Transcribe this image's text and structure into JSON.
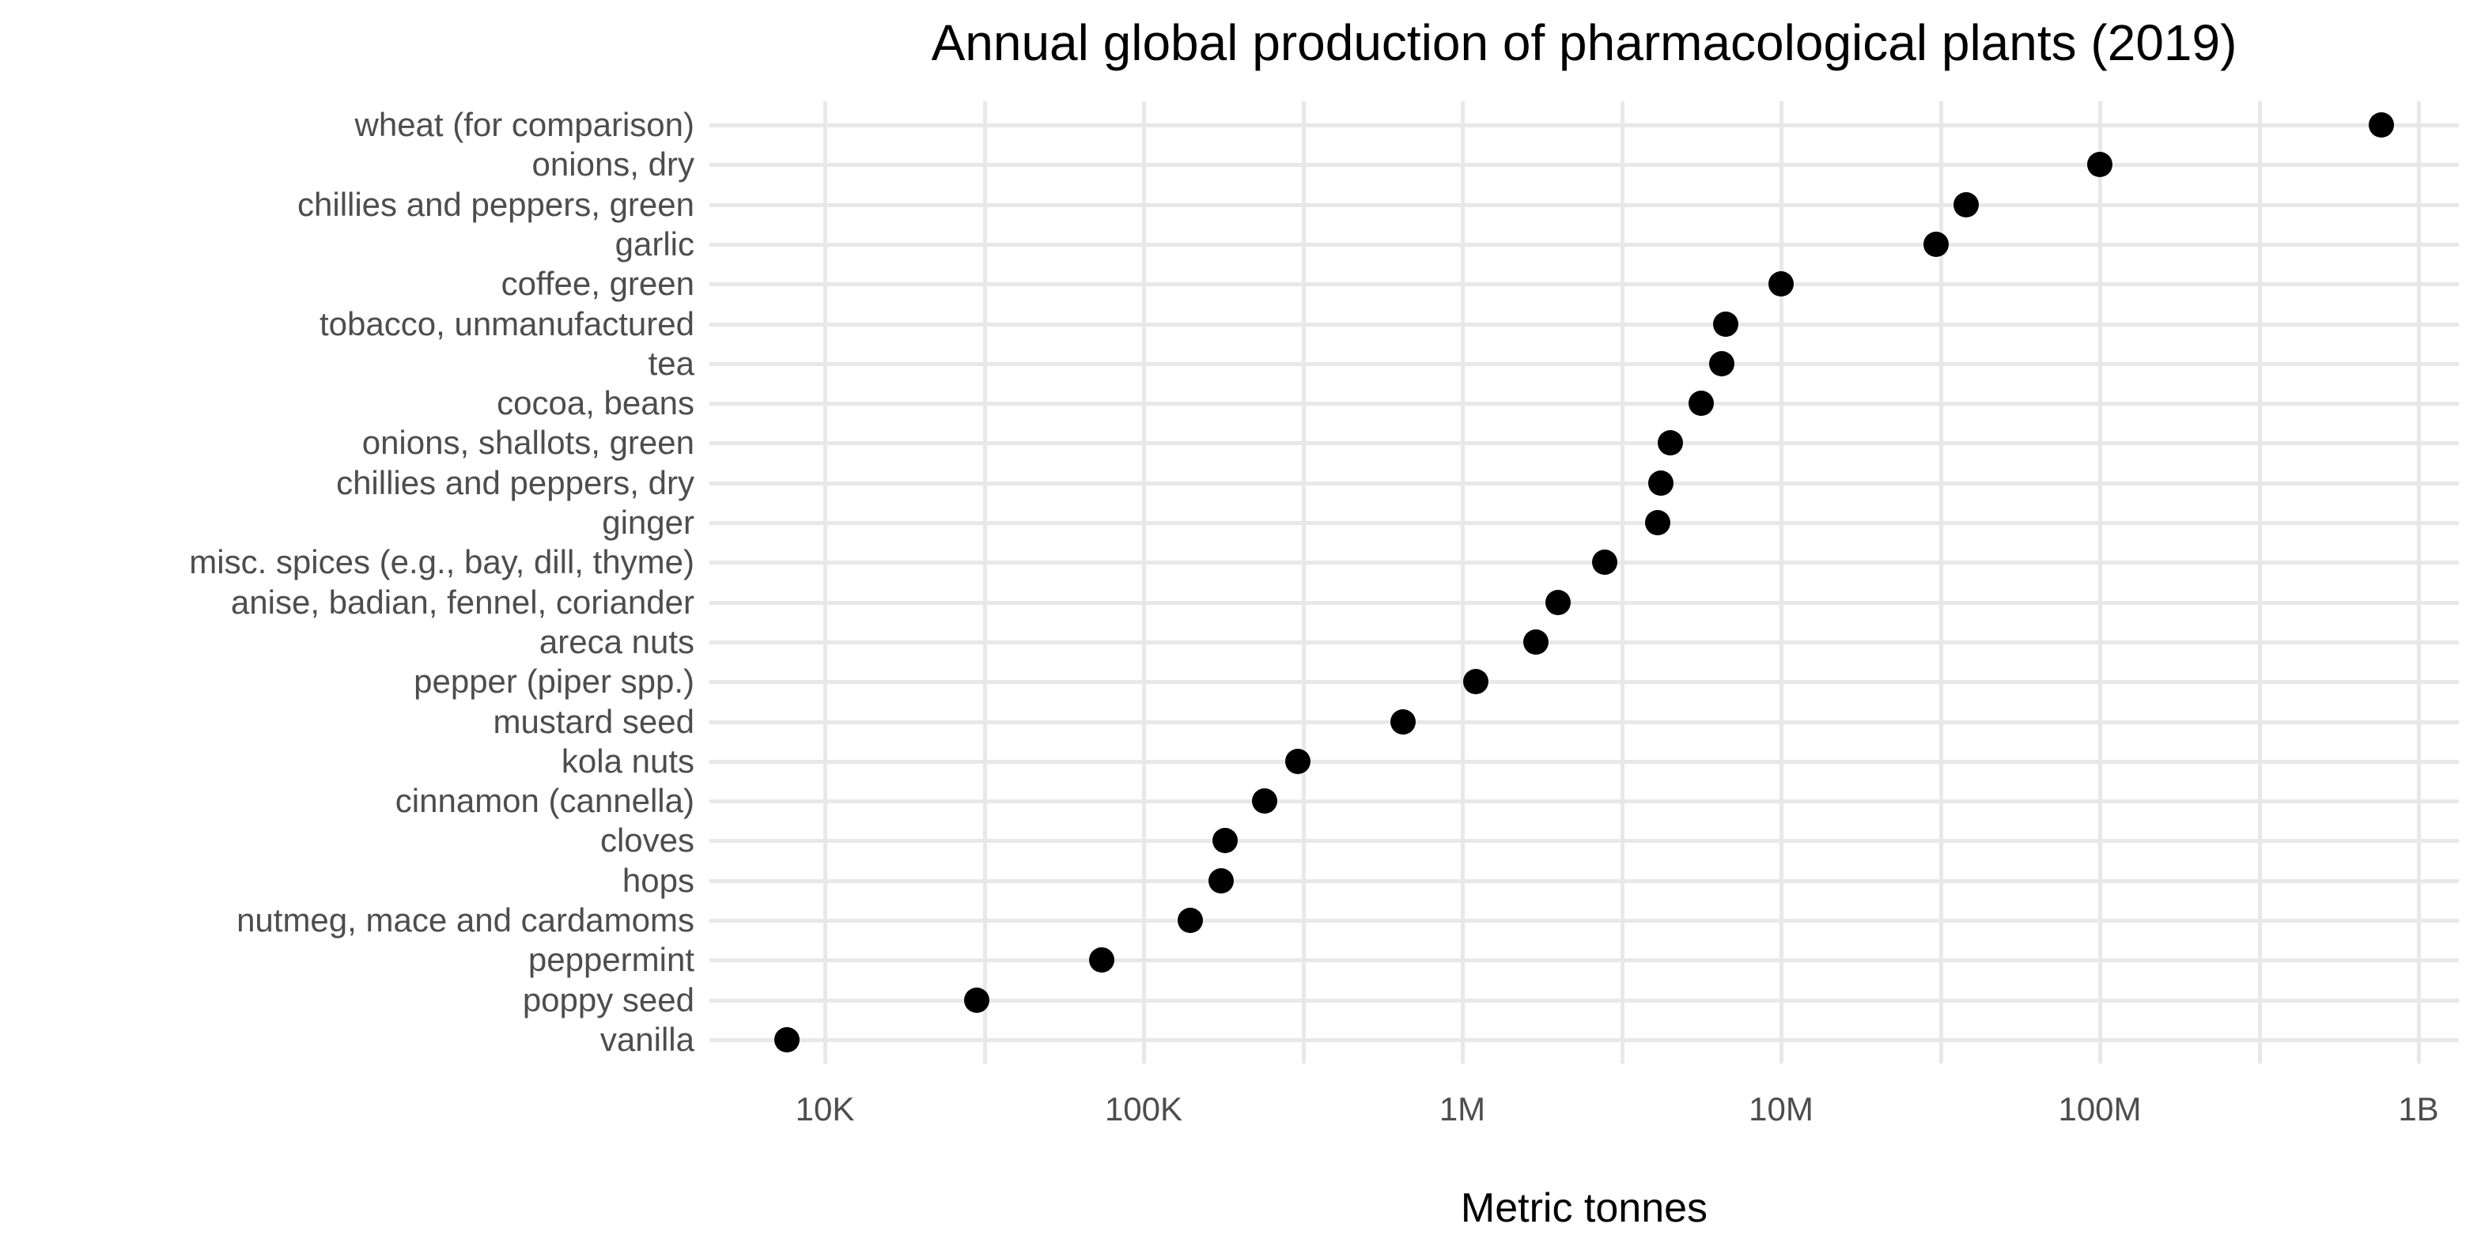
{
  "chart": {
    "title": "Annual global production of pharmacological plants (2019)",
    "x_axis_title": "Metric tonnes"
  },
  "chart_data": {
    "type": "scatter",
    "variant": "horizontal-dot-plot",
    "title": "Annual global production of pharmacological plants (2019)",
    "xlabel": "Metric tonnes",
    "ylabel": "",
    "x_scale": "log10",
    "xlim": [
      4300,
      1340000000
    ],
    "grid": "light gray: vertical major+minor log gridlines, one horizontal gridline per category",
    "legend": "none",
    "x_ticks": [
      {
        "label": "10K",
        "value": 10000
      },
      {
        "label": "100K",
        "value": 100000
      },
      {
        "label": "1M",
        "value": 1000000
      },
      {
        "label": "10M",
        "value": 10000000
      },
      {
        "label": "100M",
        "value": 100000000
      },
      {
        "label": "1B",
        "value": 1000000000
      }
    ],
    "categories": [
      "wheat (for comparison)",
      "onions, dry",
      "chillies and peppers, green",
      "garlic",
      "coffee, green",
      "tobacco, unmanufactured",
      "tea",
      "cocoa, beans",
      "onions, shallots, green",
      "chillies and peppers, dry",
      "ginger",
      "misc. spices (e.g., bay, dill, thyme)",
      "anise, badian, fennel, coriander",
      "areca nuts",
      "pepper (piper spp.)",
      "mustard seed",
      "kola nuts",
      "cinnamon (cannella)",
      "cloves",
      "hops",
      "nutmeg, mace and cardamoms",
      "peppermint",
      "poppy seed",
      "vanilla"
    ],
    "values": [
      765000000,
      100000000,
      38000000,
      30700000,
      10000000,
      6700000,
      6500000,
      5600000,
      4500000,
      4200000,
      4100000,
      2800000,
      2000000,
      1700000,
      1100000,
      650000,
      305000,
      240000,
      180000,
      175000,
      140000,
      74000,
      30000,
      7600
    ],
    "colors": {
      "point": "#000000",
      "grid": "#E8E8E8",
      "axis_text": "#4D4D4D",
      "title_text": "#000000",
      "background": "#FFFFFF"
    }
  }
}
